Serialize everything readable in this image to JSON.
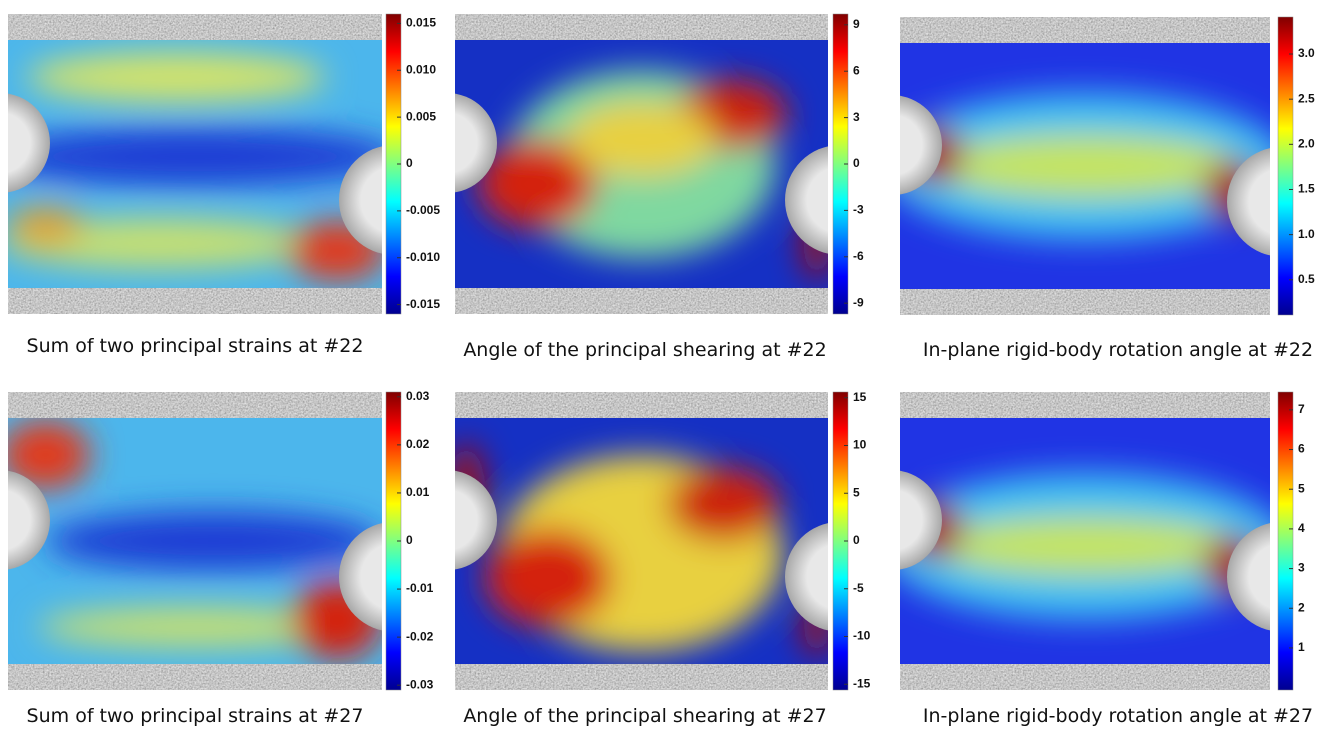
{
  "panels": [
    {
      "caption": "Sum of two principal strains at #22",
      "colorbar": {
        "lim": [
          -0.016,
          0.016
        ],
        "ticks": [
          0.015,
          {
            "value": 0.01,
            "label": "0.010"
          },
          0.005,
          0,
          -0.005,
          {
            "value": -0.01,
            "label": "-0.010"
          },
          -0.015
        ]
      }
    },
    {
      "caption": "Angle of the principal shearing at #22",
      "colorbar": {
        "lim": [
          -9.7,
          9.7
        ],
        "ticks": [
          9,
          6,
          3,
          0,
          -3,
          -6,
          -9
        ]
      }
    },
    {
      "caption": "In-plane rigid-body rotation angle at #22",
      "colorbar": {
        "lim": [
          0.11,
          3.41
        ],
        "ticks": [
          {
            "value": 3,
            "label": "3.0"
          },
          2.5,
          {
            "value": 2,
            "label": "2.0"
          },
          1.5,
          {
            "value": 1,
            "label": "1.0"
          },
          0.5
        ]
      }
    },
    {
      "caption": "Sum of two principal strains at #27",
      "colorbar": {
        "lim": [
          -0.031,
          0.031
        ],
        "ticks": [
          0.03,
          0.02,
          0.01,
          0,
          -0.01,
          -0.02,
          -0.03
        ]
      }
    },
    {
      "caption": "Angle of the principal shearing at #27",
      "colorbar": {
        "lim": [
          -15.6,
          15.6
        ],
        "ticks": [
          15,
          10,
          5,
          0,
          -5,
          -10,
          -15
        ]
      }
    },
    {
      "caption": "In-plane rigid-body rotation angle at #27",
      "colorbar": {
        "lim": [
          -0.06,
          7.45
        ],
        "ticks": [
          7,
          6,
          5,
          4,
          3,
          2,
          1
        ]
      }
    }
  ]
}
